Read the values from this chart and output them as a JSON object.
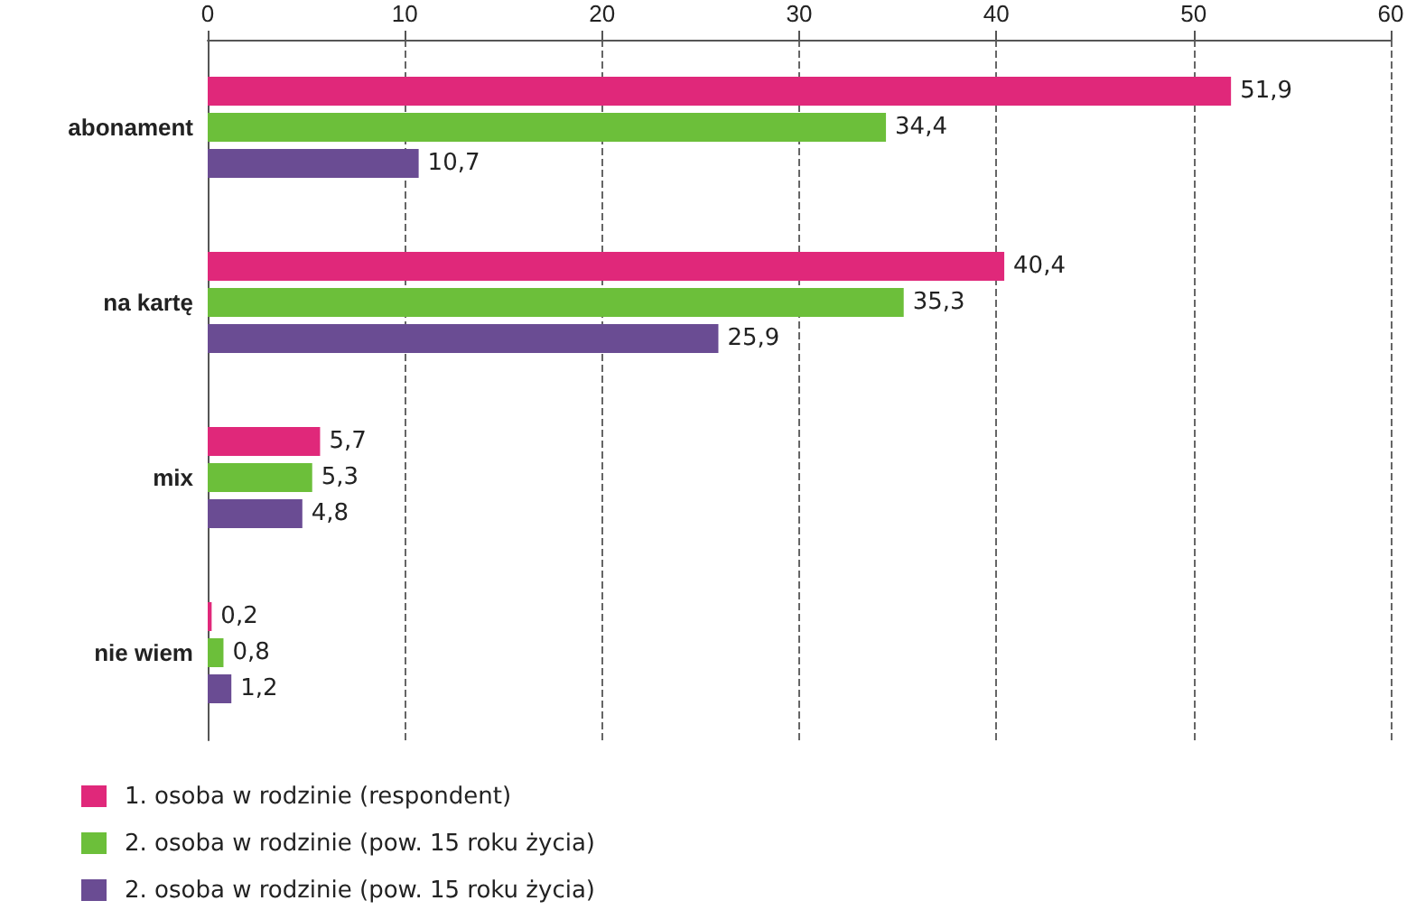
{
  "chart_data": {
    "type": "bar",
    "orientation": "horizontal",
    "categories": [
      "abonament",
      "na kartę",
      "mix",
      "nie wiem"
    ],
    "series": [
      {
        "name": "1. osoba w rodzinie (respondent)",
        "color": "#e0287a",
        "values": [
          51.9,
          40.4,
          5.7,
          0.2
        ],
        "value_labels": [
          "51,9",
          "40,4",
          "5,7",
          "0,2"
        ]
      },
      {
        "name": "2. osoba w rodzinie (pow. 15 roku życia)",
        "color": "#6cbf3a",
        "values": [
          34.4,
          35.3,
          5.3,
          0.8
        ],
        "value_labels": [
          "34,4",
          "35,3",
          "5,3",
          "0,8"
        ]
      },
      {
        "name": "2. osoba w rodzinie (pow. 15 roku życia)",
        "color": "#6a4c93",
        "values": [
          10.7,
          25.9,
          4.8,
          1.2
        ],
        "value_labels": [
          "10,7",
          "25,9",
          "4,8",
          "1,2"
        ]
      }
    ],
    "xlim": [
      0,
      60
    ],
    "xticks": [
      0,
      10,
      20,
      30,
      40,
      50,
      60
    ],
    "grid": "x",
    "legend": "bottom"
  }
}
